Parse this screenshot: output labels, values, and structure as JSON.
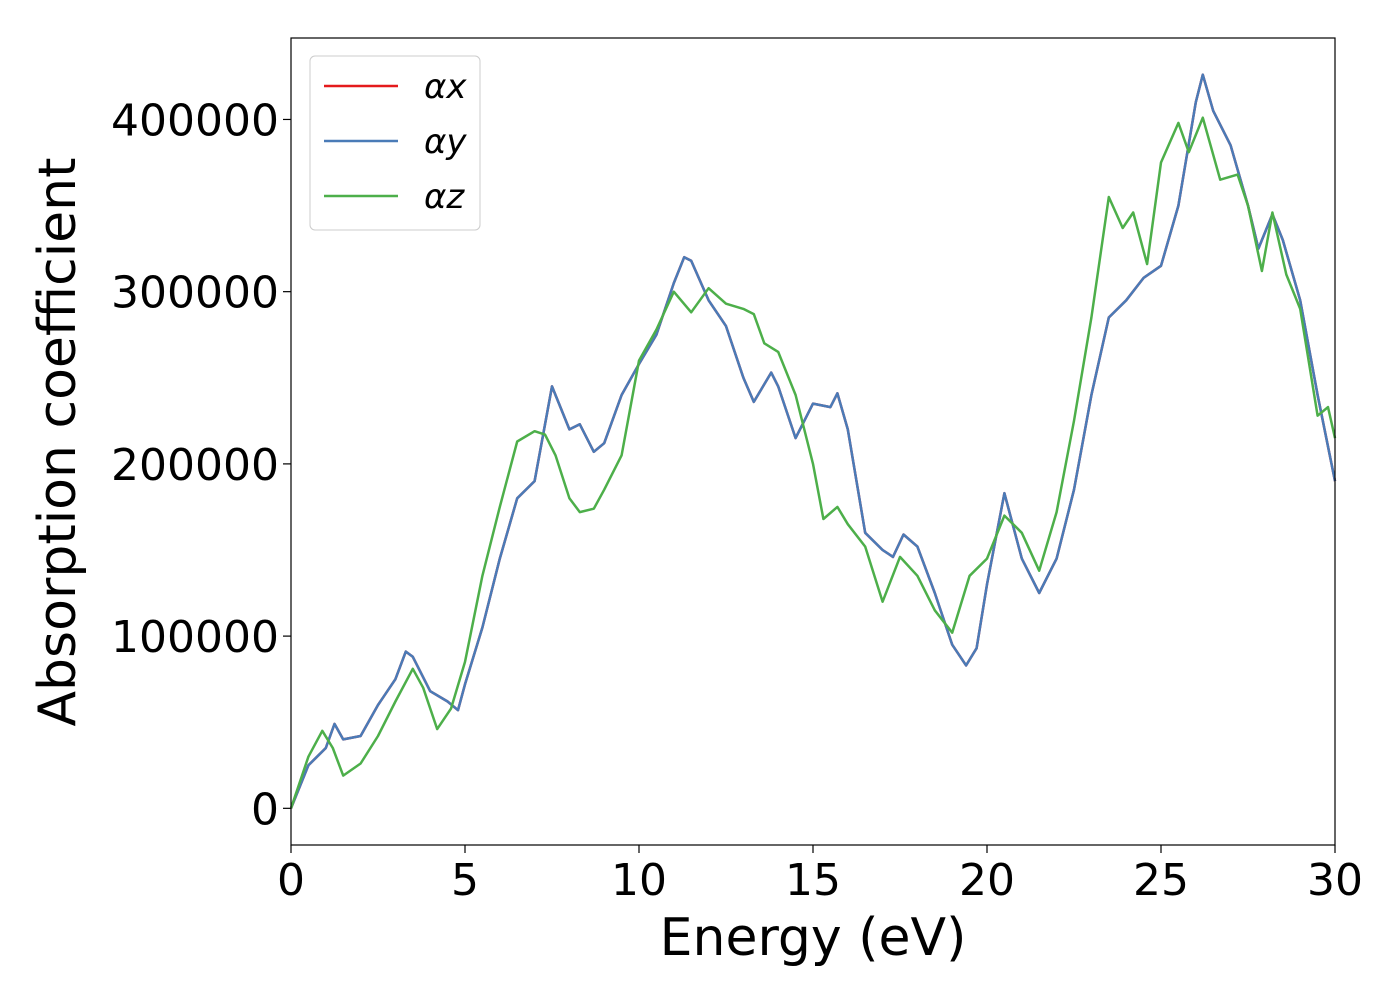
{
  "chart_data": {
    "type": "line",
    "xlabel": "Energy (eV)",
    "ylabel": "Absorption coefficient",
    "xlim": [
      0,
      30
    ],
    "xticks": [
      0,
      5,
      10,
      15,
      20,
      25,
      30
    ],
    "ylim": [
      -21300,
      447300
    ],
    "yticks": [
      0,
      100000,
      200000,
      300000,
      400000
    ],
    "legend": "upper left",
    "series": [
      {
        "name": "αx",
        "color": "#e41a1c",
        "x": [
          0,
          0.5,
          1.0,
          1.25,
          1.5,
          2.0,
          2.5,
          3.0,
          3.3,
          3.5,
          4.0,
          4.5,
          4.8,
          5.0,
          5.5,
          6.0,
          6.5,
          7.0,
          7.5,
          8.0,
          8.3,
          8.7,
          9.0,
          9.5,
          10.0,
          10.5,
          11.0,
          11.3,
          11.5,
          12.0,
          12.5,
          13.0,
          13.3,
          13.8,
          14.0,
          14.5,
          15.0,
          15.5,
          15.7,
          16.0,
          16.5,
          17.0,
          17.3,
          17.6,
          18.0,
          18.5,
          19.0,
          19.4,
          19.7,
          20.0,
          20.5,
          21.0,
          21.5,
          22.0,
          22.5,
          23.0,
          23.5,
          24.0,
          24.5,
          25.0,
          25.5,
          26.0,
          26.2,
          26.5,
          27.0,
          27.5,
          27.8,
          28.2,
          28.5,
          29.0,
          29.5,
          30.0
        ],
        "values": [
          0,
          25000,
          35000,
          49000,
          40000,
          42000,
          60000,
          75000,
          91000,
          88000,
          68000,
          62000,
          57000,
          72000,
          105000,
          145000,
          180000,
          190000,
          245000,
          220000,
          223000,
          207000,
          212000,
          240000,
          258000,
          275000,
          305000,
          320000,
          318000,
          295000,
          280000,
          250000,
          236000,
          253000,
          245000,
          215000,
          235000,
          233000,
          241000,
          220000,
          160000,
          150000,
          146000,
          159000,
          152000,
          125000,
          95000,
          83000,
          93000,
          130000,
          183000,
          145000,
          125000,
          145000,
          185000,
          240000,
          285000,
          295000,
          308000,
          315000,
          350000,
          410000,
          426000,
          405000,
          385000,
          350000,
          325000,
          345000,
          330000,
          295000,
          240000,
          190000
        ]
      },
      {
        "name": "αy",
        "color": "#4a7bb7",
        "x": [
          0,
          0.5,
          1.0,
          1.25,
          1.5,
          2.0,
          2.5,
          3.0,
          3.3,
          3.5,
          4.0,
          4.5,
          4.8,
          5.0,
          5.5,
          6.0,
          6.5,
          7.0,
          7.5,
          8.0,
          8.3,
          8.7,
          9.0,
          9.5,
          10.0,
          10.5,
          11.0,
          11.3,
          11.5,
          12.0,
          12.5,
          13.0,
          13.3,
          13.8,
          14.0,
          14.5,
          15.0,
          15.5,
          15.7,
          16.0,
          16.5,
          17.0,
          17.3,
          17.6,
          18.0,
          18.5,
          19.0,
          19.4,
          19.7,
          20.0,
          20.5,
          21.0,
          21.5,
          22.0,
          22.5,
          23.0,
          23.5,
          24.0,
          24.5,
          25.0,
          25.5,
          26.0,
          26.2,
          26.5,
          27.0,
          27.5,
          27.8,
          28.2,
          28.5,
          29.0,
          29.5,
          30.0
        ],
        "values": [
          0,
          25000,
          35000,
          49000,
          40000,
          42000,
          60000,
          75000,
          91000,
          88000,
          68000,
          62000,
          57000,
          72000,
          105000,
          145000,
          180000,
          190000,
          245000,
          220000,
          223000,
          207000,
          212000,
          240000,
          258000,
          275000,
          305000,
          320000,
          318000,
          295000,
          280000,
          250000,
          236000,
          253000,
          245000,
          215000,
          235000,
          233000,
          241000,
          220000,
          160000,
          150000,
          146000,
          159000,
          152000,
          125000,
          95000,
          83000,
          93000,
          130000,
          183000,
          145000,
          125000,
          145000,
          185000,
          240000,
          285000,
          295000,
          308000,
          315000,
          350000,
          410000,
          426000,
          405000,
          385000,
          350000,
          325000,
          345000,
          330000,
          295000,
          240000,
          190000
        ]
      },
      {
        "name": "αz",
        "color": "#4daf4a",
        "x": [
          0,
          0.5,
          0.9,
          1.2,
          1.5,
          2.0,
          2.5,
          3.0,
          3.5,
          3.8,
          4.2,
          4.6,
          5.0,
          5.5,
          6.0,
          6.5,
          7.0,
          7.3,
          7.6,
          8.0,
          8.3,
          8.7,
          9.0,
          9.5,
          10.0,
          10.5,
          11.0,
          11.5,
          12.0,
          12.5,
          13.0,
          13.3,
          13.6,
          14.0,
          14.5,
          15.0,
          15.3,
          15.7,
          16.0,
          16.5,
          17.0,
          17.5,
          18.0,
          18.5,
          19.0,
          19.5,
          20.0,
          20.5,
          21.0,
          21.5,
          22.0,
          22.5,
          23.0,
          23.5,
          23.9,
          24.2,
          24.6,
          25.0,
          25.5,
          25.8,
          26.2,
          26.7,
          27.2,
          27.5,
          27.9,
          28.2,
          28.6,
          29.0,
          29.5,
          29.8,
          30.0
        ],
        "values": [
          0,
          30000,
          45000,
          35000,
          19000,
          26000,
          42000,
          62000,
          81000,
          70000,
          46000,
          58000,
          85000,
          135000,
          175000,
          213000,
          219000,
          217000,
          205000,
          180000,
          172000,
          174000,
          185000,
          205000,
          260000,
          278000,
          300000,
          288000,
          302000,
          293000,
          290000,
          287000,
          270000,
          265000,
          240000,
          200000,
          168000,
          175000,
          165000,
          152000,
          120000,
          146000,
          135000,
          115000,
          102000,
          135000,
          145000,
          170000,
          160000,
          138000,
          172000,
          225000,
          285000,
          355000,
          337000,
          346000,
          316000,
          375000,
          398000,
          381000,
          401000,
          365000,
          368000,
          350000,
          312000,
          346000,
          310000,
          290000,
          228000,
          233000,
          215000
        ]
      }
    ]
  }
}
